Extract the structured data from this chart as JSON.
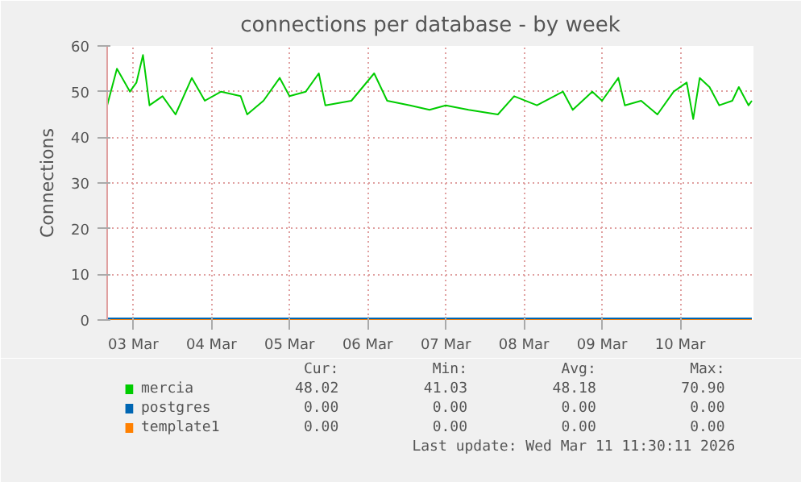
{
  "chart_data": {
    "type": "line",
    "title": "connections per database - by week",
    "ylabel": "Connections",
    "xlim": [
      "2026-03-03T04:00",
      "2026-03-11T10:30"
    ],
    "xticks": [
      {
        "value": "2026-03-03T12:00",
        "label": "03 Mar"
      },
      {
        "value": "2026-03-04T12:00",
        "label": "04 Mar"
      },
      {
        "value": "2026-03-05T12:00",
        "label": "05 Mar"
      },
      {
        "value": "2026-03-06T12:00",
        "label": "06 Mar"
      },
      {
        "value": "2026-03-07T12:00",
        "label": "07 Mar"
      },
      {
        "value": "2026-03-08T12:00",
        "label": "08 Mar"
      },
      {
        "value": "2026-03-09T12:00",
        "label": "09 Mar"
      },
      {
        "value": "2026-03-10T12:00",
        "label": "10 Mar"
      }
    ],
    "ylim": [
      0,
      60
    ],
    "yticks": [
      0,
      10,
      20,
      30,
      40,
      50,
      60
    ],
    "grid": true,
    "legend": "bottom",
    "x": [
      "2026-03-03T04:00",
      "2026-03-03T07:00",
      "2026-03-03T11:00",
      "2026-03-03T13:00",
      "2026-03-03T15:00",
      "2026-03-03T17:00",
      "2026-03-03T21:00",
      "2026-03-04T01:00",
      "2026-03-04T06:00",
      "2026-03-04T10:00",
      "2026-03-04T15:00",
      "2026-03-04T21:00",
      "2026-03-04T23:00",
      "2026-03-05T04:00",
      "2026-03-05T09:00",
      "2026-03-05T12:00",
      "2026-03-05T17:00",
      "2026-03-05T21:00",
      "2026-03-05T23:00",
      "2026-03-06T07:00",
      "2026-03-06T14:00",
      "2026-03-06T18:00",
      "2026-03-07T01:00",
      "2026-03-07T07:00",
      "2026-03-07T12:00",
      "2026-03-07T19:00",
      "2026-03-08T04:00",
      "2026-03-08T09:00",
      "2026-03-08T16:00",
      "2026-03-09T00:00",
      "2026-03-09T03:00",
      "2026-03-09T09:00",
      "2026-03-09T12:00",
      "2026-03-09T17:00",
      "2026-03-09T19:00",
      "2026-03-10T00:00",
      "2026-03-10T05:00",
      "2026-03-10T10:00",
      "2026-03-10T14:00",
      "2026-03-10T16:00",
      "2026-03-10T18:00",
      "2026-03-10T21:00",
      "2026-03-11T00:00",
      "2026-03-11T04:00",
      "2026-03-11T06:00",
      "2026-03-11T09:00",
      "2026-03-11T10:00"
    ],
    "series": [
      {
        "name": "mercia",
        "color": "#00cc00",
        "values": [
          47,
          55,
          50,
          52,
          58,
          47,
          49,
          45,
          53,
          48,
          50,
          49,
          45,
          48,
          53,
          49,
          50,
          54,
          47,
          48,
          54,
          48,
          47,
          46,
          47,
          46,
          45,
          49,
          47,
          50,
          46,
          50,
          48,
          53,
          47,
          48,
          45,
          50,
          52,
          44,
          53,
          51,
          47,
          48,
          51,
          47,
          48
        ]
      },
      {
        "name": "postgres",
        "color": "#0066b3",
        "x": [
          "2026-03-03T04:00",
          "2026-03-11T10:00"
        ],
        "values": [
          0,
          0
        ]
      },
      {
        "name": "template1",
        "color": "#ff8000",
        "x": [
          "2026-03-03T04:00",
          "2026-03-11T10:00"
        ],
        "values": [
          0,
          0
        ]
      }
    ],
    "annotations": [
      "Cur:",
      "Min:",
      "Avg:",
      "Max:",
      "48.02",
      "41.03",
      "48.18",
      "70.90",
      "0.00",
      "0.00",
      "0.00",
      "0.00",
      "0.00",
      "0.00",
      "0.00",
      "0.00",
      "Last update: Wed Mar 11 11:30:11 2026"
    ]
  }
}
